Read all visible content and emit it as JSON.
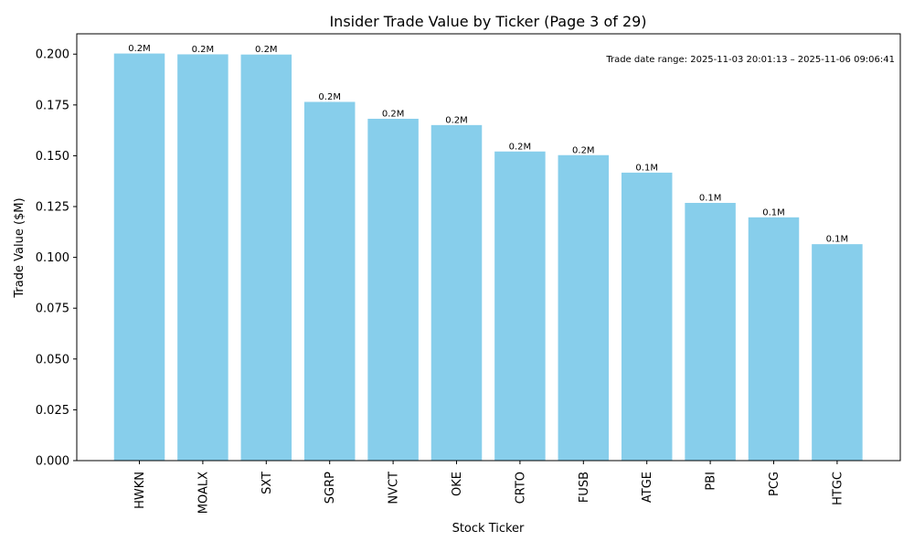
{
  "chart_data": {
    "type": "bar",
    "title": "Insider Trade Value by Ticker (Page 3 of 29)",
    "xlabel": "Stock Ticker",
    "ylabel": "Trade Value ($M)",
    "categories": [
      "HWKN",
      "MOALX",
      "SXT",
      "SGRP",
      "NVCT",
      "OKE",
      "CRTO",
      "FUSB",
      "ATGE",
      "PBI",
      "PCG",
      "HTGC"
    ],
    "values": [
      0.2003,
      0.1999,
      0.1998,
      0.1765,
      0.1682,
      0.1651,
      0.1521,
      0.1503,
      0.1417,
      0.1268,
      0.1197,
      0.1065
    ],
    "data_labels": [
      "0.2M",
      "0.2M",
      "0.2M",
      "0.2M",
      "0.2M",
      "0.2M",
      "0.2M",
      "0.2M",
      "0.1M",
      "0.1M",
      "0.1M",
      "0.1M"
    ],
    "ylim": [
      0,
      0.21
    ],
    "yticks": [
      0.0,
      0.025,
      0.05,
      0.075,
      0.1,
      0.125,
      0.15,
      0.175,
      0.2
    ],
    "ytick_labels": [
      "0.000",
      "0.025",
      "0.050",
      "0.075",
      "0.100",
      "0.125",
      "0.150",
      "0.175",
      "0.200"
    ],
    "annotation": "Trade date range: 2025-11-03 20:01:13 – 2025-11-06 09:06:41",
    "grid": false,
    "bar_color": "#87CEEB"
  }
}
